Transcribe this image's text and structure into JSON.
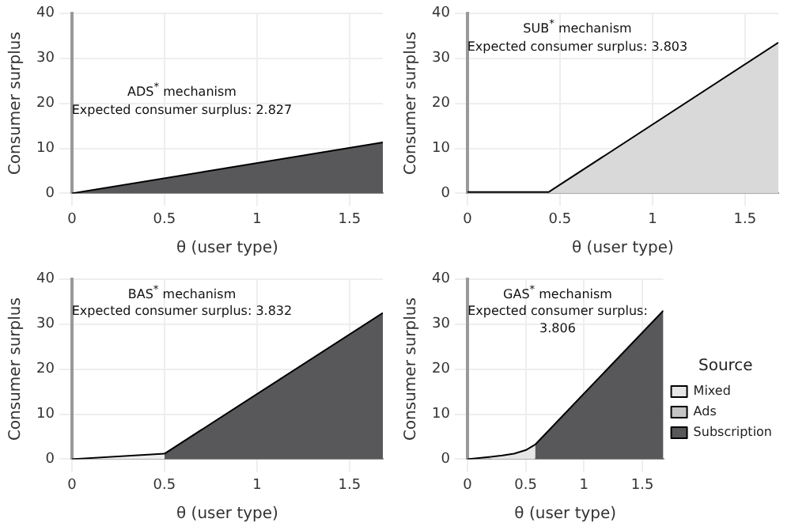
{
  "chart_data": [
    {
      "type": "area",
      "xlabel": "θ (user type)",
      "ylabel": "Consumer surplus",
      "xlim": [
        0,
        1.68
      ],
      "xticks": [
        0,
        0.5,
        1,
        1.5
      ],
      "ylim": [
        0,
        40
      ],
      "yticks": [
        0,
        10,
        20,
        30,
        40
      ],
      "grid": true,
      "annotations": [
        "ADS$^{*}$ mechanism",
        "Expected consumer surplus: 2.827"
      ],
      "series": [
        {
          "color": "#58585b",
          "x": [
            0,
            1.68
          ],
          "values": [
            0,
            11.3
          ]
        }
      ]
    },
    {
      "type": "area",
      "xlabel": "θ (user type)",
      "ylabel": "Consumer surplus",
      "xlim": [
        0,
        1.68
      ],
      "xticks": [
        0,
        0.5,
        1,
        1.5
      ],
      "ylim": [
        0,
        40
      ],
      "yticks": [
        0,
        10,
        20,
        30,
        40
      ],
      "grid": true,
      "annotations": [
        "SUB$^{*}$ mechanism",
        "Expected consumer surplus: 3.803"
      ],
      "series": [
        {
          "color": "#d9d9d9",
          "x": [
            0,
            0.44,
            1.68
          ],
          "values": [
            0.3,
            0.3,
            33.5
          ]
        }
      ]
    },
    {
      "type": "area",
      "xlabel": "θ (user type)",
      "ylabel": "Consumer surplus",
      "xlim": [
        0,
        1.68
      ],
      "xticks": [
        0,
        0.5,
        1,
        1.5
      ],
      "ylim": [
        0,
        40
      ],
      "yticks": [
        0,
        10,
        20,
        30,
        40
      ],
      "grid": true,
      "annotations": [
        "BAS$^{*}$ mechanism",
        "Expected consumer surplus: 3.832"
      ],
      "series": [
        {
          "color": "#eeeeee",
          "x": [
            0,
            0.5
          ],
          "values": [
            0,
            1.2
          ]
        },
        {
          "color": "#58585b",
          "x": [
            0.5,
            1.68
          ],
          "values": [
            1.2,
            32.5
          ]
        }
      ]
    },
    {
      "type": "area",
      "xlabel": "θ (user type)",
      "ylabel": "Consumer surplus",
      "xlim": [
        0,
        1.68
      ],
      "xticks": [
        0,
        0.5,
        1,
        1.5
      ],
      "ylim": [
        0,
        40
      ],
      "yticks": [
        0,
        10,
        20,
        30,
        40
      ],
      "grid": true,
      "annotations": [
        "GAS$^{*}$ mechanism",
        "Expected consumer surplus: 3.806"
      ],
      "legend": "right",
      "legend_title": "Source",
      "series": [
        {
          "name": "Mixed",
          "color": "#e6e6e6",
          "x": [
            0.2,
            0.3,
            0.4,
            0.5,
            0.58
          ],
          "values": [
            0.5,
            0.8,
            1.2,
            2.0,
            3.2
          ]
        },
        {
          "name": "Ads",
          "color": "#c4c4c4",
          "x": [
            0,
            0.2
          ],
          "values": [
            0,
            0.5
          ]
        },
        {
          "name": "Subscription",
          "color": "#58585b",
          "x": [
            0.58,
            1.68
          ],
          "values": [
            3.2,
            33
          ]
        }
      ]
    }
  ]
}
